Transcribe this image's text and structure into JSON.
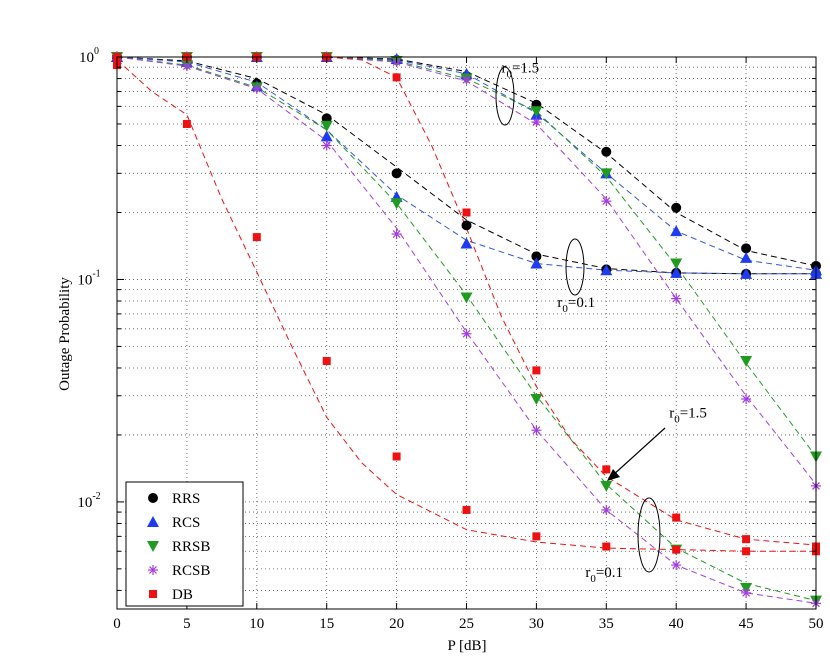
{
  "chart_data": {
    "type": "line",
    "xlabel": "P [dB]",
    "ylabel": "Outage Probability",
    "x_ticks": [
      0,
      5,
      10,
      15,
      20,
      25,
      30,
      35,
      40,
      45,
      50
    ],
    "y_ticks": [
      {
        "value": 0.01,
        "base": "10",
        "exp": "-2"
      },
      {
        "value": 0.1,
        "base": "10",
        "exp": "-1"
      },
      {
        "value": 1,
        "base": "10",
        "exp": "0"
      }
    ],
    "xlim": [
      0,
      50
    ],
    "ylim": [
      0.0033,
      1.0
    ],
    "y_scale": "log",
    "grid": true,
    "legend_position": "bottom-left",
    "x": [
      0,
      5,
      10,
      15,
      20,
      25,
      30,
      35,
      40,
      45,
      50
    ],
    "series": [
      {
        "name": "RRS",
        "color": "#000000",
        "marker": "circle",
        "markers": [
          [
            0,
            1.0
          ],
          [
            5,
            1.0
          ],
          [
            10,
            1.0
          ],
          [
            15,
            1.0
          ],
          [
            20,
            0.97
          ],
          [
            25,
            0.82
          ],
          [
            30,
            0.61
          ],
          [
            35,
            0.375
          ],
          [
            40,
            0.21
          ],
          [
            45,
            0.138
          ],
          [
            50,
            0.115
          ],
          [
            0,
            1.0
          ],
          [
            5,
            0.96
          ],
          [
            10,
            0.76
          ],
          [
            15,
            0.53
          ],
          [
            20,
            0.3
          ],
          [
            25,
            0.175
          ],
          [
            30,
            0.127
          ],
          [
            35,
            0.111
          ],
          [
            40,
            0.107
          ],
          [
            45,
            0.106
          ],
          [
            50,
            0.106
          ]
        ],
        "curves": [
          [
            [
              0,
              1.0
            ],
            [
              5,
              1.0
            ],
            [
              10,
              1.0
            ],
            [
              15,
              1.0
            ],
            [
              20,
              0.98
            ],
            [
              25,
              0.86
            ],
            [
              30,
              0.62
            ],
            [
              35,
              0.37
            ],
            [
              40,
              0.2
            ],
            [
              45,
              0.135
            ],
            [
              50,
              0.115
            ]
          ],
          [
            [
              0,
              1.0
            ],
            [
              5,
              0.96
            ],
            [
              10,
              0.8
            ],
            [
              15,
              0.55
            ],
            [
              20,
              0.32
            ],
            [
              25,
              0.185
            ],
            [
              30,
              0.13
            ],
            [
              35,
              0.112
            ],
            [
              40,
              0.107
            ],
            [
              45,
              0.106
            ],
            [
              50,
              0.106
            ]
          ]
        ],
        "curve_color": "#000000"
      },
      {
        "name": "RCS",
        "color": "#1f3bf0",
        "marker": "triangle-up",
        "markers": [
          [
            0,
            1.0
          ],
          [
            5,
            1.0
          ],
          [
            10,
            1.0
          ],
          [
            15,
            1.0
          ],
          [
            20,
            0.98
          ],
          [
            25,
            0.84
          ],
          [
            30,
            0.55
          ],
          [
            35,
            0.3
          ],
          [
            40,
            0.165
          ],
          [
            45,
            0.125
          ],
          [
            50,
            0.11
          ],
          [
            0,
            1.0
          ],
          [
            5,
            0.95
          ],
          [
            10,
            0.74
          ],
          [
            15,
            0.44
          ],
          [
            20,
            0.235
          ],
          [
            25,
            0.145
          ],
          [
            30,
            0.118
          ],
          [
            35,
            0.11
          ],
          [
            40,
            0.107
          ],
          [
            45,
            0.106
          ],
          [
            50,
            0.106
          ]
        ],
        "curves": [
          [
            [
              0,
              1.0
            ],
            [
              5,
              1.0
            ],
            [
              10,
              1.0
            ],
            [
              15,
              1.0
            ],
            [
              20,
              0.97
            ],
            [
              25,
              0.84
            ],
            [
              30,
              0.56
            ],
            [
              35,
              0.3
            ],
            [
              40,
              0.165
            ],
            [
              45,
              0.122
            ],
            [
              50,
              0.11
            ]
          ],
          [
            [
              0,
              1.0
            ],
            [
              5,
              0.95
            ],
            [
              10,
              0.77
            ],
            [
              15,
              0.47
            ],
            [
              20,
              0.24
            ],
            [
              25,
              0.15
            ],
            [
              30,
              0.118
            ],
            [
              35,
              0.11
            ],
            [
              40,
              0.107
            ],
            [
              45,
              0.106
            ],
            [
              50,
              0.106
            ]
          ]
        ],
        "curve_color": "#3355dd"
      },
      {
        "name": "RRSB",
        "color": "#1f9c1f",
        "marker": "triangle-down",
        "markers": [
          [
            0,
            1.0
          ],
          [
            5,
            1.0
          ],
          [
            10,
            1.0
          ],
          [
            15,
            1.0
          ],
          [
            20,
            0.96
          ],
          [
            25,
            0.8
          ],
          [
            30,
            0.57
          ],
          [
            35,
            0.3
          ],
          [
            40,
            0.118
          ],
          [
            45,
            0.043
          ],
          [
            50,
            0.016
          ],
          [
            0,
            1.0
          ],
          [
            5,
            0.92
          ],
          [
            10,
            0.73
          ],
          [
            15,
            0.49
          ],
          [
            20,
            0.22
          ],
          [
            25,
            0.083
          ],
          [
            30,
            0.029
          ],
          [
            35,
            0.0118
          ],
          [
            40,
            0.0061
          ],
          [
            45,
            0.0041
          ],
          [
            50,
            0.0036
          ]
        ],
        "curves": [
          [
            [
              0,
              1.0
            ],
            [
              5,
              1.0
            ],
            [
              10,
              1.0
            ],
            [
              15,
              1.0
            ],
            [
              20,
              0.96
            ],
            [
              25,
              0.8
            ],
            [
              30,
              0.57
            ],
            [
              35,
              0.29
            ],
            [
              40,
              0.115
            ],
            [
              45,
              0.042
            ],
            [
              50,
              0.016
            ]
          ],
          [
            [
              0,
              1.0
            ],
            [
              5,
              0.92
            ],
            [
              10,
              0.73
            ],
            [
              15,
              0.47
            ],
            [
              20,
              0.22
            ],
            [
              25,
              0.085
            ],
            [
              30,
              0.03
            ],
            [
              35,
              0.012
            ],
            [
              40,
              0.0062
            ],
            [
              45,
              0.0043
            ],
            [
              50,
              0.0036
            ]
          ]
        ],
        "curve_color": "#229922"
      },
      {
        "name": "RCSB",
        "color": "#a33de0",
        "marker": "asterisk",
        "markers": [
          [
            0,
            1.0
          ],
          [
            5,
            1.0
          ],
          [
            10,
            1.0
          ],
          [
            15,
            1.0
          ],
          [
            20,
            0.95
          ],
          [
            25,
            0.79
          ],
          [
            30,
            0.51
          ],
          [
            35,
            0.225
          ],
          [
            40,
            0.082
          ],
          [
            45,
            0.029
          ],
          [
            50,
            0.0118
          ],
          [
            0,
            1.0
          ],
          [
            5,
            0.91
          ],
          [
            10,
            0.72
          ],
          [
            15,
            0.4
          ],
          [
            20,
            0.16
          ],
          [
            25,
            0.057
          ],
          [
            30,
            0.021
          ],
          [
            35,
            0.0092
          ],
          [
            40,
            0.0052
          ],
          [
            45,
            0.0039
          ],
          [
            50,
            0.0035
          ]
        ],
        "curves": [
          [
            [
              0,
              1.0
            ],
            [
              5,
              1.0
            ],
            [
              10,
              1.0
            ],
            [
              15,
              1.0
            ],
            [
              20,
              0.95
            ],
            [
              25,
              0.78
            ],
            [
              30,
              0.5
            ],
            [
              35,
              0.23
            ],
            [
              40,
              0.082
            ],
            [
              45,
              0.03
            ],
            [
              50,
              0.012
            ]
          ],
          [
            [
              0,
              1.0
            ],
            [
              5,
              0.91
            ],
            [
              10,
              0.72
            ],
            [
              15,
              0.42
            ],
            [
              20,
              0.17
            ],
            [
              25,
              0.058
            ],
            [
              30,
              0.021
            ],
            [
              35,
              0.0092
            ],
            [
              40,
              0.0052
            ],
            [
              45,
              0.0039
            ],
            [
              50,
              0.0035
            ]
          ]
        ],
        "curve_color": "#a33de0"
      },
      {
        "name": "DB",
        "color": "#ee1111",
        "marker": "square",
        "markers": [
          [
            0,
            1.0
          ],
          [
            5,
            1.0
          ],
          [
            10,
            1.0
          ],
          [
            15,
            1.0
          ],
          [
            20,
            0.81
          ],
          [
            25,
            0.2
          ],
          [
            30,
            0.039
          ],
          [
            35,
            0.014
          ],
          [
            40,
            0.0085
          ],
          [
            45,
            0.0068
          ],
          [
            50,
            0.0063
          ],
          [
            0,
            0.92
          ],
          [
            5,
            0.5
          ],
          [
            10,
            0.155
          ],
          [
            15,
            0.043
          ],
          [
            20,
            0.016
          ],
          [
            25,
            0.0092
          ],
          [
            30,
            0.007
          ],
          [
            35,
            0.0063
          ],
          [
            40,
            0.0061
          ],
          [
            45,
            0.006
          ],
          [
            50,
            0.006
          ]
        ],
        "curves": [
          [
            [
              0,
              1.0
            ],
            [
              5,
              1.0
            ],
            [
              10,
              1.0
            ],
            [
              15,
              1.0
            ],
            [
              17.5,
              0.97
            ],
            [
              20,
              0.81
            ],
            [
              22.5,
              0.4
            ],
            [
              25,
              0.17
            ],
            [
              27.5,
              0.068
            ],
            [
              30,
              0.033
            ],
            [
              32.5,
              0.019
            ],
            [
              35,
              0.013
            ],
            [
              40,
              0.0083
            ],
            [
              45,
              0.0068
            ],
            [
              50,
              0.0064
            ]
          ],
          [
            [
              0,
              0.97
            ],
            [
              2.5,
              0.7
            ],
            [
              5,
              0.55
            ],
            [
              7.5,
              0.23
            ],
            [
              10,
              0.108
            ],
            [
              12.5,
              0.05
            ],
            [
              15,
              0.024
            ],
            [
              17.5,
              0.015
            ],
            [
              20,
              0.0108
            ],
            [
              25,
              0.0075
            ],
            [
              30,
              0.0066
            ],
            [
              35,
              0.0062
            ],
            [
              40,
              0.0061
            ],
            [
              45,
              0.006
            ],
            [
              50,
              0.006
            ]
          ]
        ],
        "curve_color": "#ee1111"
      }
    ],
    "annotations": [
      {
        "id": "r15-top",
        "text": "r",
        "sub": "0",
        "rest": "=1.5",
        "x": 27.5,
        "y": 0.85
      },
      {
        "id": "r01-mid",
        "text": "r",
        "sub": "0",
        "rest": "=0.1",
        "x": 31.5,
        "y": 0.075
      },
      {
        "id": "r15-bottom",
        "text": "r",
        "sub": "0",
        "rest": "=1.5",
        "x": 39.5,
        "y": 0.024
      },
      {
        "id": "r01-bottom",
        "text": "r",
        "sub": "0",
        "rest": "=0.1",
        "x": 33.5,
        "y": 0.0046
      }
    ]
  }
}
